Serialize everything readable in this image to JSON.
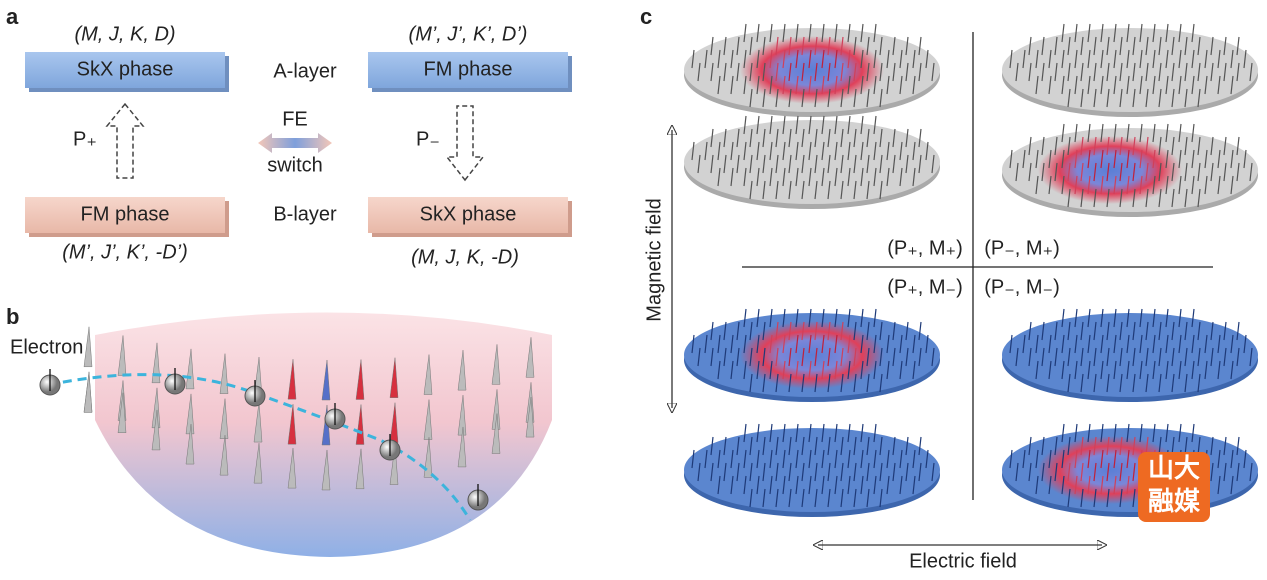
{
  "panel_a": {
    "label": "a",
    "top_left_params": "(M, J, K, D)",
    "top_left_phase": "SkX phase",
    "top_layer": "A-layer",
    "top_right_params": "(M’, J’, K’, D’)",
    "top_right_phase": "FM phase",
    "left_polarization": "P₊",
    "switch_top": "FE",
    "switch_bottom": "switch",
    "right_polarization": "P₋",
    "bottom_left_phase": "FM phase",
    "bottom_layer": "B-layer",
    "bottom_right_phase": "SkX phase",
    "bottom_left_params": "(M’, J’, K’, -D’)",
    "bottom_right_params": "(M, J, K, -D)"
  },
  "panel_b": {
    "label": "b",
    "particle": "Electron"
  },
  "panel_c": {
    "label": "c",
    "y_axis": "Magnetic field",
    "x_axis": "Electric field",
    "quadrants": [
      "(P₊, M₊)",
      "(P₋, M₊)",
      "(P₊, M₋)",
      "(P₋, M₋)"
    ]
  },
  "watermark": {
    "line1": "山大",
    "line2": "融媒"
  }
}
